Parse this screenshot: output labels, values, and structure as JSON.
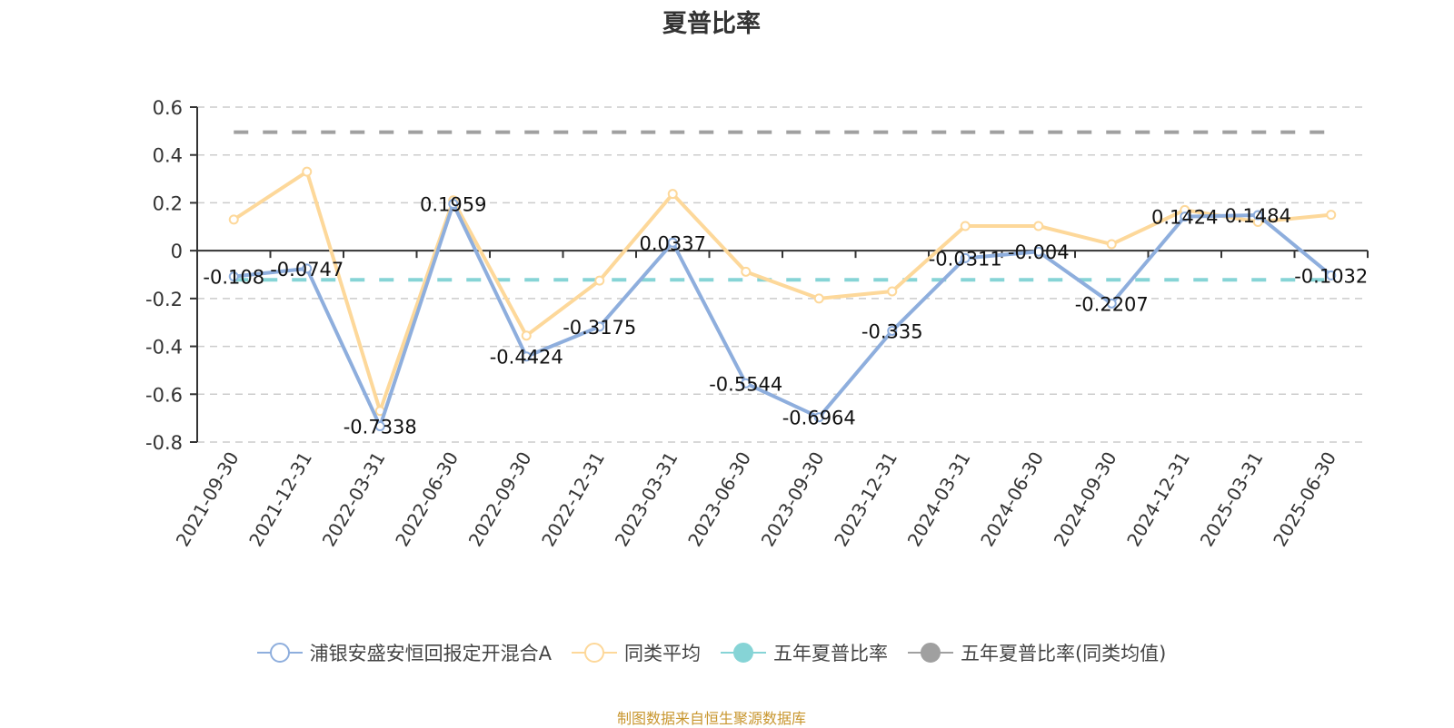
{
  "title": "夏普比率",
  "source_note": "制图数据来自恒生聚源数据库",
  "legend": [
    {
      "label": "浦银安盛安恒回报定开混合A",
      "color": "#8eaedd",
      "marker": "hollow-circle"
    },
    {
      "label": "同类平均",
      "color": "#fdd89a",
      "marker": "hollow-circle"
    },
    {
      "label": "五年夏普比率",
      "color": "#86d4d6",
      "marker": "filled-circle"
    },
    {
      "label": "五年夏普比率(同类均值)",
      "color": "#a0a0a0",
      "marker": "filled-circle"
    }
  ],
  "chart_data": {
    "type": "line",
    "title": "夏普比率",
    "xlabel": "",
    "ylabel": "",
    "ylim": [
      -0.8,
      0.6
    ],
    "yticks": [
      0.6,
      0.4,
      0.2,
      0,
      -0.2,
      -0.4,
      -0.6,
      -0.8
    ],
    "ytick_labels": [
      "0.6",
      "0.4",
      "0.2",
      "0",
      "-0.2",
      "-0.4",
      "-0.6",
      "-0.8"
    ],
    "grid": true,
    "legend_position": "bottom",
    "categories": [
      "2021-09-30",
      "2021-12-31",
      "2022-03-31",
      "2022-06-30",
      "2022-09-30",
      "2022-12-31",
      "2023-03-31",
      "2023-06-30",
      "2023-09-30",
      "2023-12-31",
      "2024-03-31",
      "2024-06-30",
      "2024-09-30",
      "2024-12-31",
      "2025-03-31",
      "2025-06-30"
    ],
    "series": [
      {
        "name": "浦银安盛安恒回报定开混合A",
        "color": "#8eaedd",
        "show_labels": true,
        "values": [
          -0.108,
          -0.0747,
          -0.7338,
          0.1959,
          -0.4424,
          -0.3175,
          0.0337,
          -0.5544,
          -0.6964,
          -0.335,
          -0.0311,
          -0.004,
          -0.2207,
          0.1424,
          0.1484,
          -0.1032
        ]
      },
      {
        "name": "同类平均",
        "color": "#fdd89a",
        "show_labels": false,
        "values": [
          0.13,
          0.33,
          -0.67,
          0.21,
          -0.355,
          -0.125,
          0.237,
          -0.088,
          -0.2,
          -0.17,
          0.103,
          0.103,
          0.027,
          0.17,
          0.12,
          0.15
        ]
      },
      {
        "name": "五年夏普比率",
        "color": "#86d4d6",
        "style": "dashed",
        "constant": -0.122
      },
      {
        "name": "五年夏普比率(同类均值)",
        "color": "#a0a0a0",
        "style": "dashed",
        "constant": 0.495
      }
    ]
  }
}
